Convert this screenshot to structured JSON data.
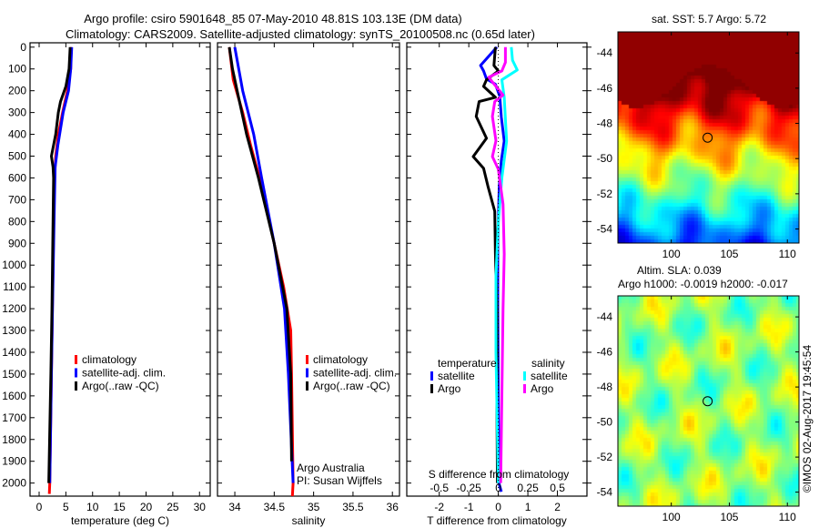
{
  "title_line1": "Argo profile: csiro 5901648_85 07-May-2010 48.81S 103.13E (DM data)",
  "title_line2": "Climatology: CARS2009. Satellite-adjusted climatology: synTS_20100508.nc (0.65d later)",
  "credit": "Argo Australia",
  "pi": "PI: Susan Wijffels",
  "copyright": "©IMOS 02-Aug-2017 19:45:54",
  "colors": {
    "climatology": "#ff0000",
    "satellite": "#0000ff",
    "argo": "#000000",
    "s_satellite": "#00ffff",
    "s_argo": "#ff00ff"
  },
  "chart_data": [
    {
      "type": "line",
      "name": "temperature",
      "xlabel": "temperature (deg C)",
      "xlim": [
        -1.7,
        32
      ],
      "ylim": [
        2060,
        -20
      ],
      "xticks": [
        0,
        5,
        10,
        15,
        20,
        25,
        30
      ],
      "yticks": [
        0,
        100,
        200,
        300,
        400,
        500,
        600,
        700,
        800,
        900,
        1000,
        1100,
        1200,
        1300,
        1400,
        1500,
        1600,
        1700,
        1800,
        1900,
        2000
      ],
      "legend": [
        "climatology",
        "satellite-adj. clim.",
        "Argo(..raw -QC)"
      ],
      "series": [
        {
          "name": "climatology",
          "color": "#ff0000",
          "depth": [
            0,
            100,
            200,
            300,
            400,
            500,
            600,
            700,
            1000,
            1500,
            2000,
            2050
          ],
          "values": [
            6.0,
            5.9,
            5.3,
            4.4,
            3.6,
            3.1,
            2.9,
            2.8,
            2.6,
            2.3,
            2.0,
            1.9
          ]
        },
        {
          "name": "satellite-adj. clim.",
          "color": "#0000ff",
          "depth": [
            0,
            100,
            200,
            300,
            450,
            550,
            800,
            1200,
            1500,
            2000
          ],
          "values": [
            6.1,
            5.9,
            5.5,
            4.5,
            3.5,
            3.0,
            2.8,
            2.5,
            2.3,
            2.0
          ]
        },
        {
          "name": "Argo(..raw -QC)",
          "color": "#000000",
          "depth": [
            0,
            100,
            180,
            250,
            300,
            400,
            500,
            550,
            600,
            800,
            1200,
            1500,
            2000
          ],
          "values": [
            5.8,
            5.6,
            5.0,
            4.0,
            3.6,
            3.1,
            2.3,
            2.6,
            2.7,
            2.6,
            2.4,
            2.2,
            1.8
          ]
        }
      ]
    },
    {
      "type": "line",
      "name": "salinity",
      "xlabel": "salinity",
      "xlim": [
        33.78,
        36.09
      ],
      "ylim": [
        2060,
        -20
      ],
      "xticks": [
        34,
        34.5,
        35,
        35.5,
        36
      ],
      "xtick_labels": [
        "34",
        "34.5",
        "35",
        "35.5",
        "36"
      ],
      "legend": [
        "climatology",
        "satellite-adj. clim.",
        "Argo(..raw -QC)"
      ],
      "series": [
        {
          "name": "climatology",
          "color": "#ff0000",
          "depth": [
            0,
            150,
            300,
            450,
            650,
            900,
            1100,
            1300,
            1500,
            2000,
            2060
          ],
          "values": [
            33.93,
            33.98,
            34.1,
            34.2,
            34.35,
            34.5,
            34.62,
            34.71,
            34.72,
            34.74,
            34.73
          ]
        },
        {
          "name": "satellite-adj. clim.",
          "color": "#0000ff",
          "depth": [
            0,
            200,
            400,
            600,
            900,
            1200,
            1500,
            2000
          ],
          "values": [
            34.0,
            34.1,
            34.24,
            34.34,
            34.5,
            34.63,
            34.68,
            34.74
          ]
        },
        {
          "name": "Argo(..raw -QC)",
          "color": "#000000",
          "depth": [
            0,
            100,
            200,
            400,
            600,
            900,
            1200,
            1500,
            1900
          ],
          "values": [
            33.93,
            33.97,
            34.03,
            34.15,
            34.3,
            34.5,
            34.66,
            34.71,
            34.72
          ]
        }
      ]
    },
    {
      "type": "line",
      "name": "differences",
      "xlabel": "T difference from climatology",
      "x2label": "S difference from climatology",
      "xlim": [
        -3.1,
        3.0
      ],
      "ylim": [
        2060,
        -20
      ],
      "xticks": [
        -2,
        -1,
        0,
        1,
        2
      ],
      "x2ticks": [
        -0.5,
        -0.25,
        0,
        0.25,
        0.5
      ],
      "x2tick_labels": [
        "-0.5",
        "-0.25",
        "0",
        "0.25",
        "0.5"
      ],
      "legend_t_title": "temperature",
      "legend_s_title": "salinity",
      "legend_labels": [
        "satellite",
        "Argo",
        "satellite",
        "Argo"
      ],
      "series": [
        {
          "name": "T satellite",
          "axis": "T",
          "color": "#0000ff",
          "depth": [
            0,
            84,
            109,
            146,
            170,
            225,
            320,
            431,
            520,
            640,
            900,
            1200,
            1600,
            2000,
            2040
          ],
          "values": [
            -0.05,
            -0.6,
            -0.5,
            -0.4,
            -0.1,
            0.05,
            0.1,
            0.2,
            0.1,
            0.03,
            -0.02,
            -0.02,
            0,
            0.02,
            0.1
          ]
        },
        {
          "name": "T Argo",
          "axis": "T",
          "color": "#000000",
          "depth": [
            0,
            84,
            109,
            150,
            180,
            230,
            250,
            318,
            418,
            502,
            556,
            640,
            753,
            946,
            1200,
            1600,
            2000
          ],
          "values": [
            -0.1,
            -0.15,
            0,
            -0.4,
            -0.5,
            -0.1,
            -0.65,
            -0.75,
            -0.4,
            -0.85,
            -0.5,
            -0.35,
            -0.12,
            -0.1,
            -0.05,
            -0.05,
            -0.03
          ]
        },
        {
          "name": "S satellite",
          "axis": "S",
          "color": "#00ffff",
          "depth": [
            0,
            60,
            105,
            150,
            230,
            431,
            600,
            800,
            1050,
            1400,
            1700,
            2000
          ],
          "values": [
            0.11,
            0.12,
            0.16,
            0.03,
            0.05,
            0.07,
            0.03,
            0,
            -0.02,
            -0.02,
            -0.01,
            0
          ]
        },
        {
          "name": "S Argo",
          "axis": "S",
          "color": "#ff00ff",
          "depth": [
            0,
            70,
            109,
            138,
            160,
            220,
            250,
            318,
            430,
            502,
            560,
            720,
            950,
            1200,
            1600,
            2000
          ],
          "values": [
            0.06,
            0.06,
            0.03,
            -0.08,
            -0.05,
            0.04,
            -0.03,
            -0.05,
            -0.02,
            -0.05,
            0,
            0.04,
            0.05,
            0.04,
            0.03,
            0.02
          ]
        }
      ]
    },
    {
      "type": "heatmap",
      "name": "sst-map",
      "title": "sat. SST: 5.7 Argo: 5.72",
      "xlim": [
        95.4,
        111
      ],
      "ylim": [
        -54.8,
        -42.8
      ],
      "xticks": [
        100,
        105,
        110
      ],
      "yticks": [
        -44,
        -46,
        -48,
        -50,
        -52,
        -54
      ],
      "marker": {
        "lon": 103.13,
        "lat": -48.81
      }
    },
    {
      "type": "heatmap",
      "name": "sla-map",
      "title": "Altim. SLA: 0.039",
      "subtitle": "Argo h1000: -0.0019 h2000: -0.017",
      "xlim": [
        95.4,
        111
      ],
      "ylim": [
        -54.8,
        -42.8
      ],
      "xticks": [
        100,
        105,
        110
      ],
      "yticks": [
        -44,
        -46,
        -48,
        -50,
        -52,
        -54
      ],
      "marker": {
        "lon": 103.13,
        "lat": -48.81
      }
    }
  ]
}
